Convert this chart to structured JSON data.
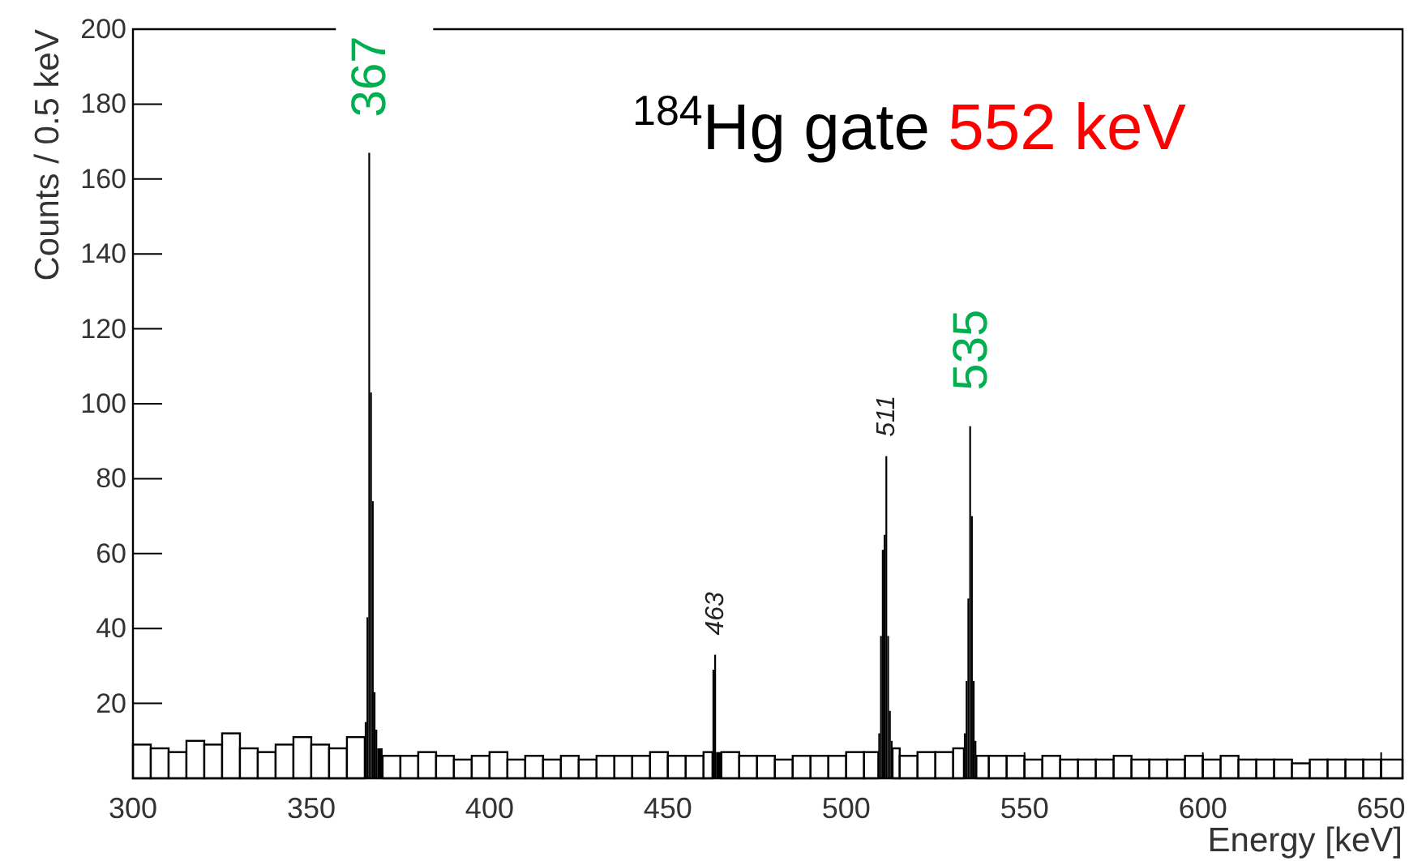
{
  "chart_data": {
    "type": "histogram",
    "title": "$^{184}$Hg gate",
    "subtitle": "552 keV",
    "xlabel": "Energy [keV]",
    "ylabel": "Counts / 0.5 keV",
    "bins": [
      300,
      305,
      310,
      315,
      320,
      325,
      330,
      335,
      340,
      345,
      350,
      355,
      360,
      365,
      365.5,
      366,
      366.5,
      367,
      367.5,
      368,
      368.5,
      370,
      375,
      380,
      385,
      390,
      395,
      400,
      405,
      410,
      415,
      420,
      425,
      430,
      435,
      440,
      445,
      450,
      455,
      460,
      462.5,
      463,
      463.5,
      465,
      470,
      475,
      480,
      485,
      490,
      495,
      500,
      505,
      509,
      509.5,
      510,
      510.5,
      511,
      511.5,
      512,
      512.5,
      513,
      515,
      520,
      525,
      530,
      533,
      533.5,
      534,
      534.5,
      535,
      535.5,
      536,
      536.5,
      540,
      545,
      550,
      555,
      560,
      565,
      570,
      575,
      580,
      585,
      590,
      595,
      600,
      605,
      610,
      615,
      620,
      625,
      630,
      635,
      640,
      645,
      650,
      656
    ],
    "values": [
      9,
      8,
      7,
      10,
      9,
      12,
      8,
      7,
      9,
      11,
      9,
      8,
      11,
      15,
      43,
      167,
      103,
      74,
      23,
      13,
      8,
      6,
      6,
      7,
      6,
      5,
      6,
      7,
      5,
      6,
      5,
      6,
      5,
      6,
      6,
      6,
      7,
      6,
      6,
      7,
      29,
      33,
      7,
      7,
      6,
      6,
      5,
      6,
      6,
      6,
      7,
      7,
      12,
      38,
      61,
      65,
      86,
      38,
      18,
      10,
      8,
      6,
      7,
      7,
      8,
      12,
      26,
      48,
      94,
      70,
      26,
      10,
      6,
      6,
      6,
      5,
      6,
      5,
      5,
      5,
      6,
      5,
      5,
      5,
      6,
      5,
      6,
      5,
      5,
      5,
      4,
      5,
      5,
      5,
      5,
      5
    ],
    "color": "#000000",
    "xlim": [
      300,
      656
    ],
    "ylim": [
      0,
      200
    ],
    "xticks": [
      300,
      350,
      400,
      450,
      500,
      550,
      600,
      650
    ],
    "yticks": [
      {
        "value": 0,
        "label": null
      },
      20,
      40,
      60,
      80,
      100,
      120,
      140,
      160,
      180,
      200
    ],
    "annotations": [
      {
        "text": "367",
        "x": 366,
        "y": 167
      },
      {
        "text": "463",
        "x": 463,
        "y": 33
      },
      {
        "text": "511",
        "x": 511,
        "y": 86
      },
      {
        "text": "535",
        "x": 534.5,
        "y": 94
      }
    ],
    "grid": false
  }
}
